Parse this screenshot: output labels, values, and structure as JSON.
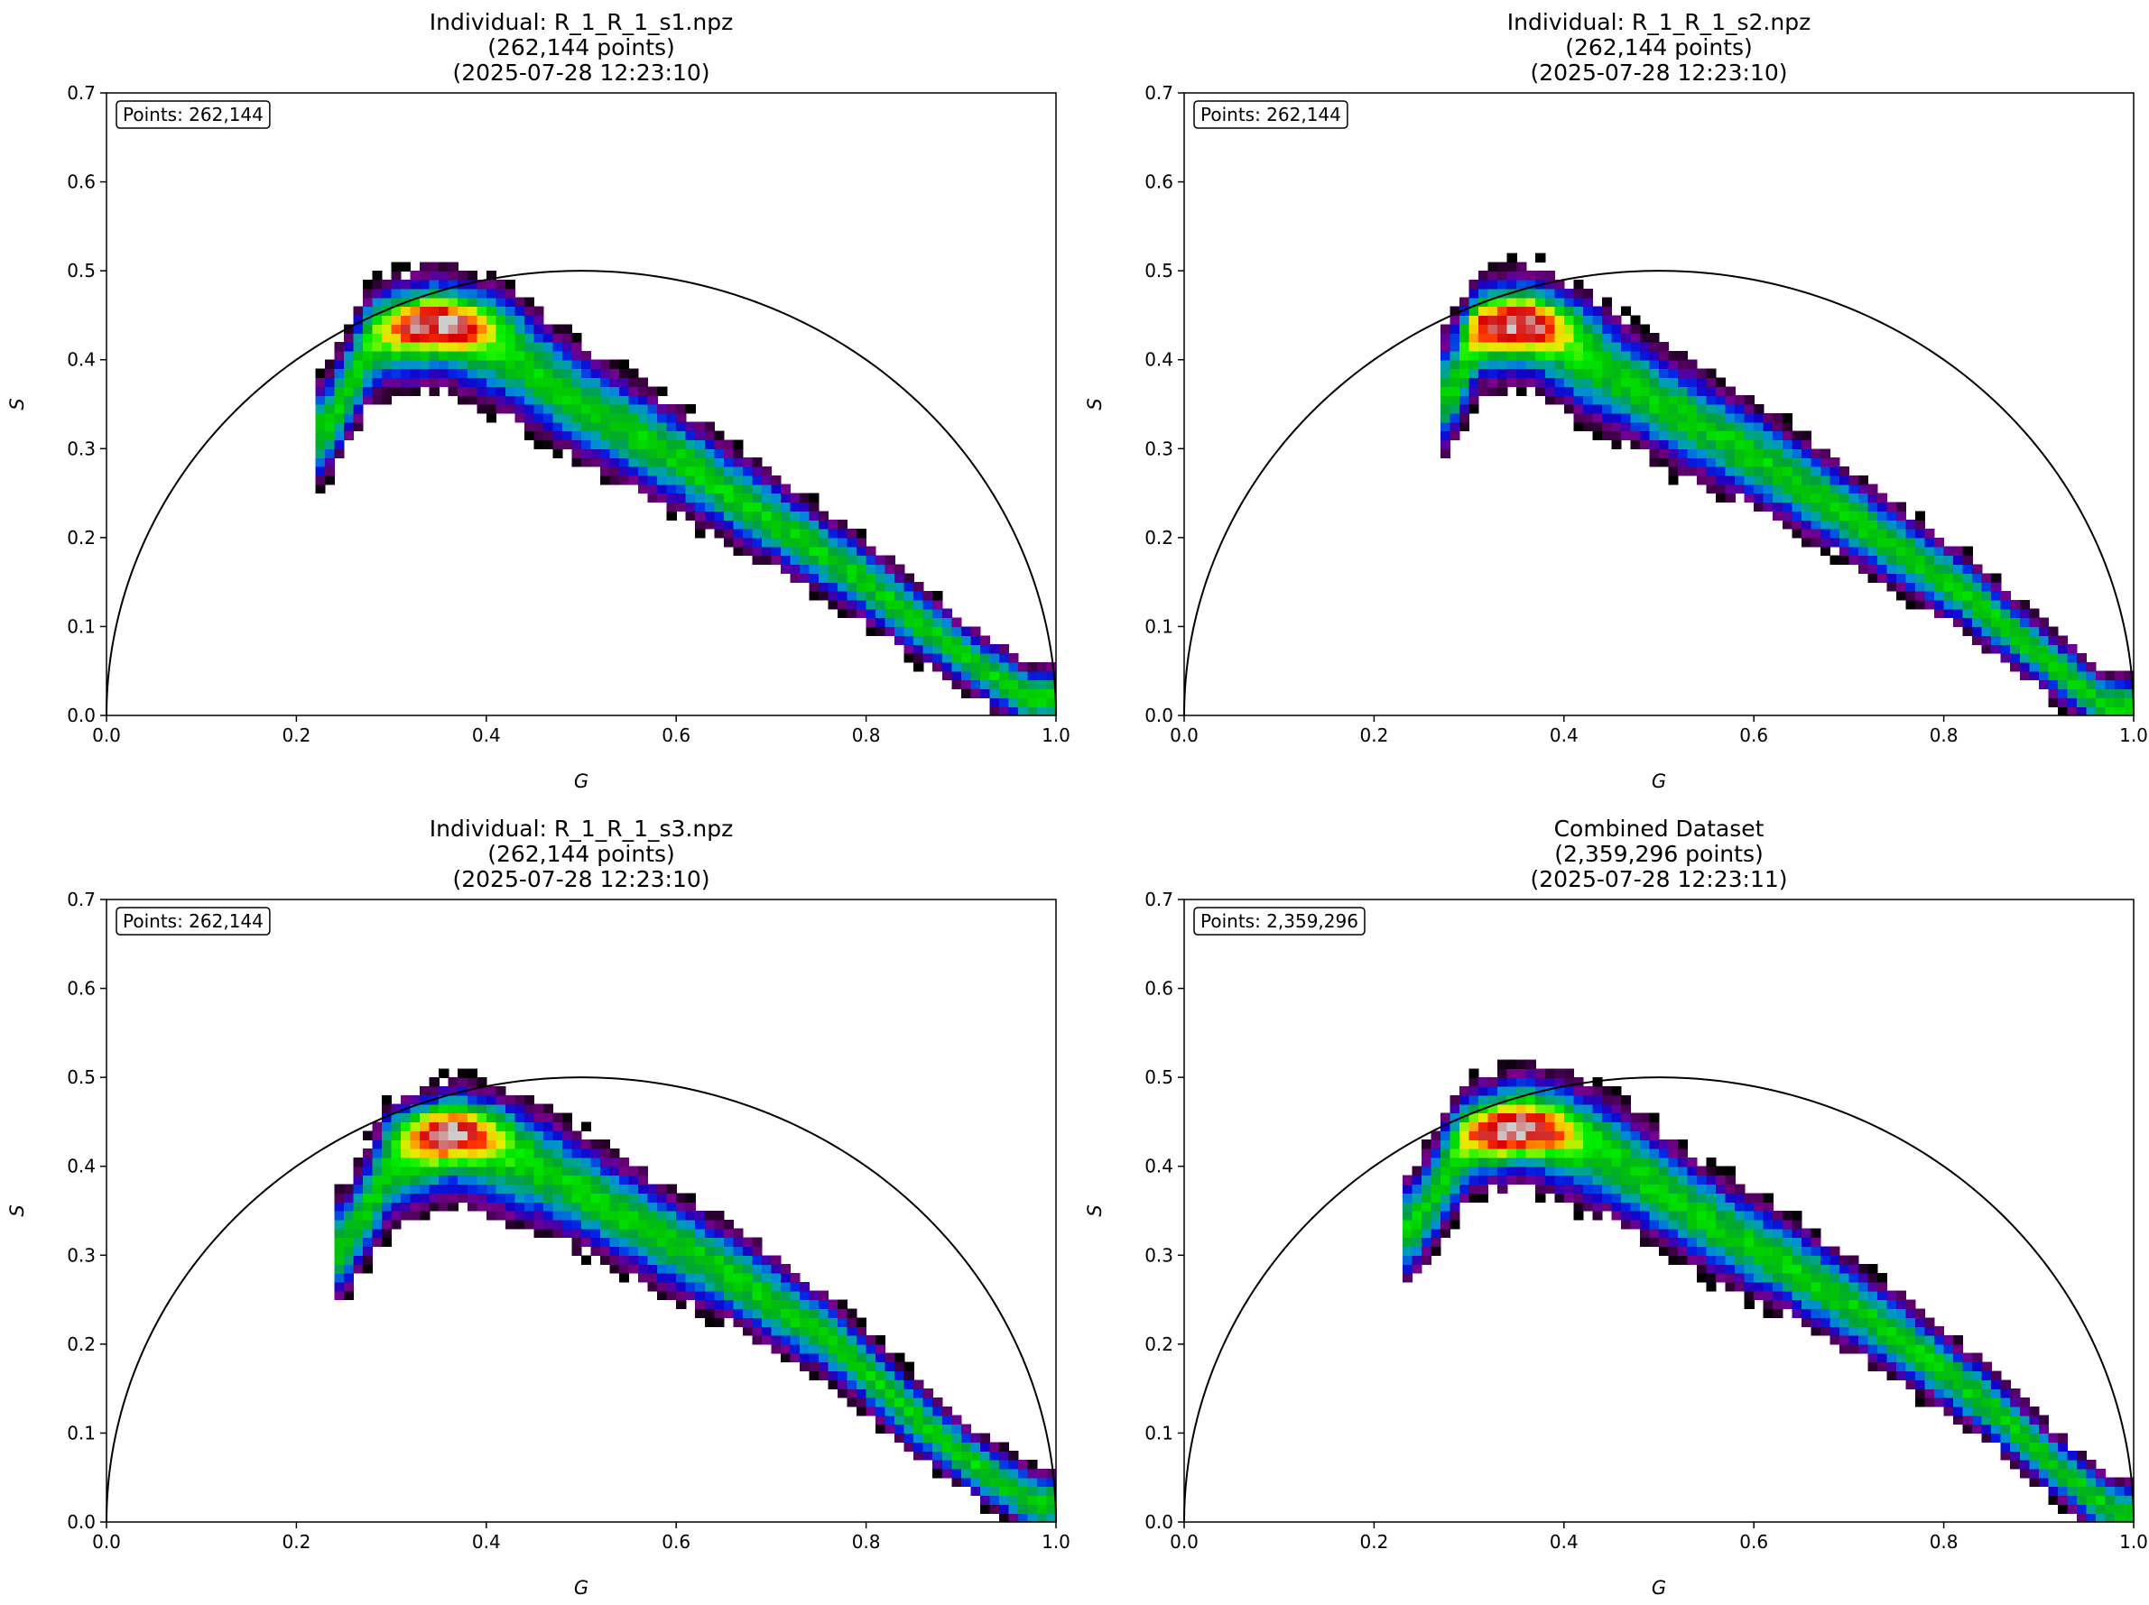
{
  "figure": {
    "panels": [
      {
        "title_lines": [
          "Individual: R_1_R_1_s1.npz",
          "(262,144 points)",
          "(2025-07-28 12:23:10)"
        ],
        "points_label": "Points: 262,144"
      },
      {
        "title_lines": [
          "Individual: R_1_R_1_s2.npz",
          "(262,144 points)",
          "(2025-07-28 12:23:10)"
        ],
        "points_label": "Points: 262,144"
      },
      {
        "title_lines": [
          "Individual: R_1_R_1_s3.npz",
          "(262,144 points)",
          "(2025-07-28 12:23:10)"
        ],
        "points_label": "Points: 262,144"
      },
      {
        "title_lines": [
          "Combined Dataset",
          "(2,359,296 points)",
          "(2025-07-28 12:23:11)"
        ],
        "points_label": "Points: 2,359,296"
      }
    ]
  },
  "chart_data": [
    {
      "type": "heatmap",
      "title": "Individual: R_1_R_1_s1.npz\n(262,144 points)\n(2025-07-28 12:23:10)",
      "xlabel": "G",
      "ylabel": "S",
      "xlim": [
        0.0,
        1.0
      ],
      "ylim": [
        0.0,
        0.7
      ],
      "xticks": [
        "0.0",
        "0.2",
        "0.4",
        "0.6",
        "0.8",
        "1.0"
      ],
      "yticks": [
        "0.0",
        "0.1",
        "0.2",
        "0.3",
        "0.4",
        "0.5",
        "0.6",
        "0.7"
      ],
      "annotation": "Points: 262,144",
      "reference_curve": "semicircle center (0.5, 0) radius 0.5",
      "colormap": "nipy_spectral",
      "grid": false,
      "density_ridge": [
        [
          0.23,
          0.32
        ],
        [
          0.28,
          0.42
        ],
        [
          0.35,
          0.44
        ],
        [
          0.42,
          0.41
        ],
        [
          0.5,
          0.35
        ],
        [
          0.6,
          0.29
        ],
        [
          0.7,
          0.22
        ],
        [
          0.8,
          0.15
        ],
        [
          0.9,
          0.07
        ],
        [
          0.97,
          0.02
        ]
      ],
      "peak": [
        0.35,
        0.44
      ]
    },
    {
      "type": "heatmap",
      "title": "Individual: R_1_R_1_s2.npz\n(262,144 points)\n(2025-07-28 12:23:10)",
      "xlabel": "G",
      "ylabel": "S",
      "xlim": [
        0.0,
        1.0
      ],
      "ylim": [
        0.0,
        0.7
      ],
      "xticks": [
        "0.0",
        "0.2",
        "0.4",
        "0.6",
        "0.8",
        "1.0"
      ],
      "yticks": [
        "0.0",
        "0.1",
        "0.2",
        "0.3",
        "0.4",
        "0.5",
        "0.6",
        "0.7"
      ],
      "annotation": "Points: 262,144",
      "reference_curve": "semicircle center (0.5, 0) radius 0.5",
      "colormap": "nipy_spectral",
      "grid": false,
      "density_ridge": [
        [
          0.28,
          0.36
        ],
        [
          0.31,
          0.43
        ],
        [
          0.36,
          0.44
        ],
        [
          0.44,
          0.39
        ],
        [
          0.52,
          0.34
        ],
        [
          0.62,
          0.28
        ],
        [
          0.72,
          0.21
        ],
        [
          0.82,
          0.14
        ],
        [
          0.9,
          0.07
        ],
        [
          0.97,
          0.01
        ]
      ],
      "peak": [
        0.35,
        0.44
      ]
    },
    {
      "type": "heatmap",
      "title": "Individual: R_1_R_1_s3.npz\n(262,144 points)\n(2025-07-28 12:23:10)",
      "xlabel": "G",
      "ylabel": "S",
      "xlim": [
        0.0,
        1.0
      ],
      "ylim": [
        0.0,
        0.7
      ],
      "xticks": [
        "0.0",
        "0.2",
        "0.4",
        "0.6",
        "0.8",
        "1.0"
      ],
      "yticks": [
        "0.0",
        "0.1",
        "0.2",
        "0.3",
        "0.4",
        "0.5",
        "0.6",
        "0.7"
      ],
      "annotation": "Points: 262,144",
      "reference_curve": "semicircle center (0.5, 0) radius 0.5",
      "colormap": "nipy_spectral",
      "grid": false,
      "density_ridge": [
        [
          0.25,
          0.31
        ],
        [
          0.3,
          0.4
        ],
        [
          0.37,
          0.43
        ],
        [
          0.47,
          0.39
        ],
        [
          0.57,
          0.33
        ],
        [
          0.67,
          0.27
        ],
        [
          0.77,
          0.2
        ],
        [
          0.85,
          0.12
        ],
        [
          0.92,
          0.06
        ],
        [
          0.98,
          0.02
        ]
      ],
      "peak": [
        0.36,
        0.44
      ]
    },
    {
      "type": "heatmap",
      "title": "Combined Dataset\n(2,359,296 points)\n(2025-07-28 12:23:11)",
      "xlabel": "G",
      "ylabel": "S",
      "xlim": [
        0.0,
        1.0
      ],
      "ylim": [
        0.0,
        0.7
      ],
      "xticks": [
        "0.0",
        "0.2",
        "0.4",
        "0.6",
        "0.8",
        "1.0"
      ],
      "yticks": [
        "0.0",
        "0.1",
        "0.2",
        "0.3",
        "0.4",
        "0.5",
        "0.6",
        "0.7"
      ],
      "annotation": "Points: 2,359,296",
      "reference_curve": "semicircle center (0.5, 0) radius 0.5",
      "colormap": "nipy_spectral",
      "grid": false,
      "density_ridge": [
        [
          0.24,
          0.33
        ],
        [
          0.3,
          0.43
        ],
        [
          0.36,
          0.45
        ],
        [
          0.45,
          0.41
        ],
        [
          0.55,
          0.34
        ],
        [
          0.65,
          0.28
        ],
        [
          0.75,
          0.21
        ],
        [
          0.85,
          0.13
        ],
        [
          0.92,
          0.06
        ],
        [
          0.98,
          0.01
        ]
      ],
      "peak": [
        0.35,
        0.44
      ]
    }
  ]
}
